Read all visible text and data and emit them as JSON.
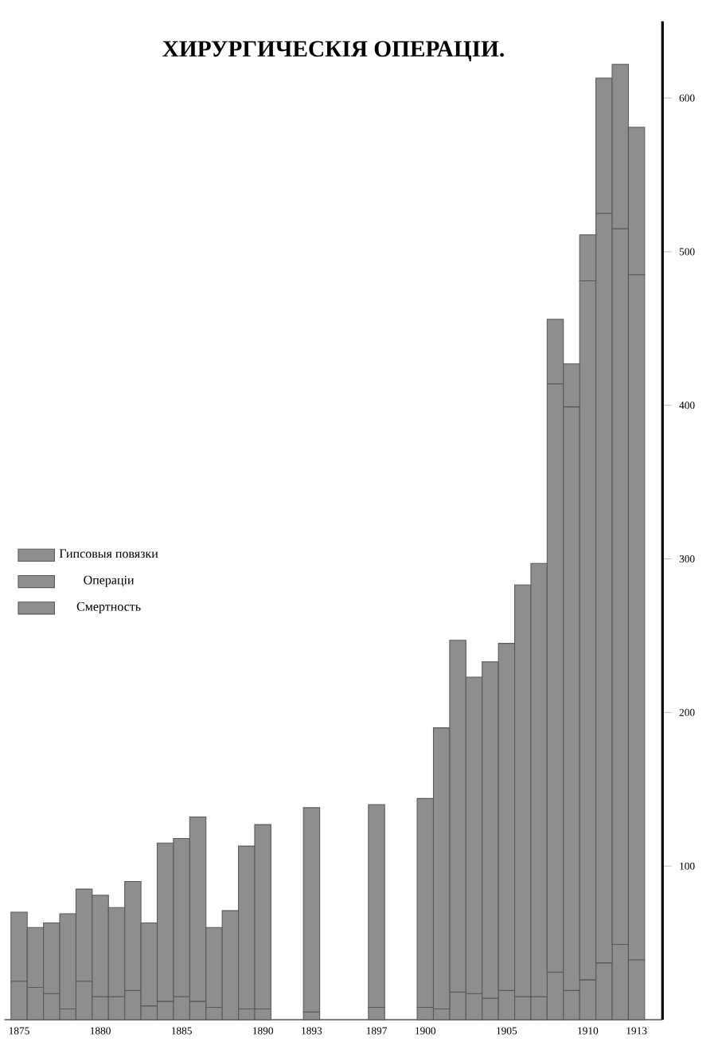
{
  "chart_data": {
    "type": "bar",
    "stacked": true,
    "title": "ХИРУРГИЧЕСКІЯ ОПЕРАЦІИ.",
    "categories": [
      "1875",
      null,
      null,
      null,
      null,
      "1880",
      null,
      null,
      null,
      null,
      "1885",
      null,
      null,
      null,
      null,
      "1890",
      null,
      null,
      "1893",
      null,
      null,
      null,
      "1897",
      null,
      null,
      "1900",
      null,
      null,
      null,
      null,
      "1905",
      null,
      null,
      null,
      null,
      "1910",
      null,
      null,
      "1913"
    ],
    "series": [
      {
        "name": "Смертность",
        "color": "#8e8e8e",
        "values": [
          25,
          21,
          17,
          7,
          25,
          15,
          15,
          19,
          9,
          12,
          15,
          12,
          8,
          null,
          7,
          7,
          null,
          null,
          5,
          null,
          null,
          null,
          8,
          null,
          null,
          8,
          7,
          18,
          17,
          14,
          19,
          15,
          15,
          31,
          19,
          26,
          37,
          49,
          39
        ]
      },
      {
        "name": "Операціи",
        "color": "#8e8e8e",
        "values": [
          45,
          39,
          46,
          62,
          60,
          66,
          58,
          71,
          54,
          103,
          103,
          120,
          52,
          71,
          106,
          120,
          null,
          null,
          133,
          null,
          null,
          null,
          132,
          null,
          null,
          136,
          183,
          229,
          206,
          219,
          226,
          268,
          282,
          383,
          380,
          455,
          488,
          466,
          446
        ]
      },
      {
        "name": "Гипсовыя повязки",
        "color": "#8e8e8e",
        "values": [
          null,
          null,
          null,
          null,
          null,
          null,
          null,
          null,
          null,
          null,
          null,
          null,
          null,
          null,
          null,
          null,
          null,
          null,
          null,
          null,
          null,
          null,
          null,
          null,
          null,
          null,
          null,
          null,
          null,
          null,
          null,
          null,
          null,
          42,
          28,
          30,
          88,
          107,
          96
        ]
      }
    ],
    "ylim": [
      0,
      650
    ],
    "yticks": [
      100,
      200,
      300,
      400,
      500,
      600
    ],
    "legend": "left"
  }
}
